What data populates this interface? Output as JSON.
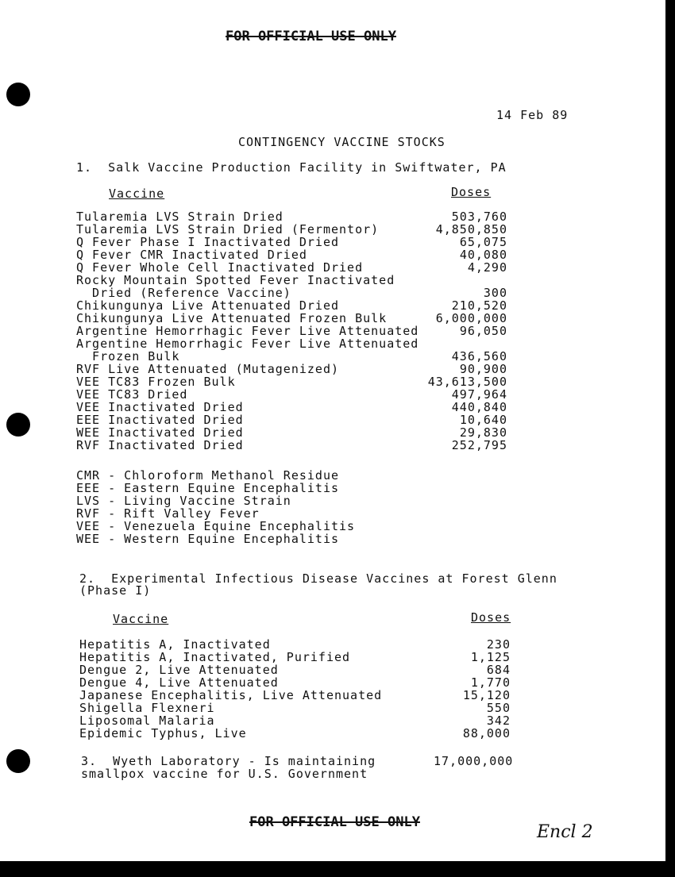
{
  "marking": "FOR OFFICIAL USE ONLY",
  "date": "14 Feb 89",
  "title": "CONTINGENCY VACCINE STOCKS",
  "section1": {
    "heading": "1.  Salk Vaccine Production Facility in Swiftwater, PA",
    "col_vaccine": "Vaccine",
    "col_doses": "Doses",
    "items": [
      {
        "name": "Tularemia LVS Strain Dried",
        "doses": "503,760"
      },
      {
        "name": "Tularemia LVS Strain Dried (Fermentor)",
        "doses": "4,850,850"
      },
      {
        "name": "Q Fever Phase I Inactivated Dried",
        "doses": "65,075"
      },
      {
        "name": "Q Fever CMR Inactivated Dried",
        "doses": "40,080"
      },
      {
        "name": "Q Fever Whole Cell Inactivated Dried",
        "doses": "4,290"
      },
      {
        "name": "Rocky Mountain Spotted Fever Inactivated",
        "cont": "  Dried (Reference Vaccine)",
        "doses": "300"
      },
      {
        "name": "Chikungunya Live Attenuated Dried",
        "doses": "210,520"
      },
      {
        "name": "Chikungunya Live Attenuated Frozen Bulk",
        "doses": "6,000,000"
      },
      {
        "name": "Argentine Hemorrhagic Fever Live Attenuated",
        "doses": "96,050"
      },
      {
        "name": "Argentine Hemorrhagic Fever Live Attenuated",
        "cont": "  Frozen Bulk",
        "doses": "436,560"
      },
      {
        "name": "RVF Live Attenuated (Mutagenized)",
        "doses": "90,900"
      },
      {
        "name": "VEE TC83 Frozen Bulk",
        "doses": "43,613,500"
      },
      {
        "name": "VEE TC83 Dried",
        "doses": "497,964"
      },
      {
        "name": "VEE Inactivated Dried",
        "doses": "440,840"
      },
      {
        "name": "EEE Inactivated Dried",
        "doses": "10,640"
      },
      {
        "name": "WEE Inactivated Dried",
        "doses": "29,830"
      },
      {
        "name": "RVF Inactivated Dried",
        "doses": "252,795"
      }
    ],
    "abbreviations": [
      "CMR - Chloroform Methanol Residue",
      "EEE - Eastern Equine Encephalitis",
      "LVS - Living Vaccine Strain",
      "RVF - Rift Valley Fever",
      "VEE - Venezuela Equine Encephalitis",
      "WEE - Western Equine Encephalitis"
    ]
  },
  "section2": {
    "heading_line1": "2.  Experimental Infectious Disease Vaccines at Forest Glenn",
    "heading_line2": "(Phase I)",
    "col_vaccine": "Vaccine",
    "col_doses": "Doses",
    "items": [
      {
        "name": "Hepatitis A, Inactivated",
        "doses": "230"
      },
      {
        "name": "Hepatitis A, Inactivated, Purified",
        "doses": "1,125"
      },
      {
        "name": "Dengue 2, Live Attenuated",
        "doses": "684"
      },
      {
        "name": "Dengue 4, Live Attenuated",
        "doses": "1,770"
      },
      {
        "name": "Japanese Encephalitis, Live Attenuated",
        "doses": "15,120"
      },
      {
        "name": "Shigella Flexneri",
        "doses": "550"
      },
      {
        "name": "Liposomal Malaria",
        "doses": "342"
      },
      {
        "name": "Epidemic Typhus, Live",
        "doses": "88,000"
      }
    ]
  },
  "section3": {
    "line1": "3.  Wyeth Laboratory - Is maintaining",
    "line2": "smallpox vaccine for U.S. Government",
    "doses": "17,000,000"
  },
  "handwritten_note": "Encl 2"
}
